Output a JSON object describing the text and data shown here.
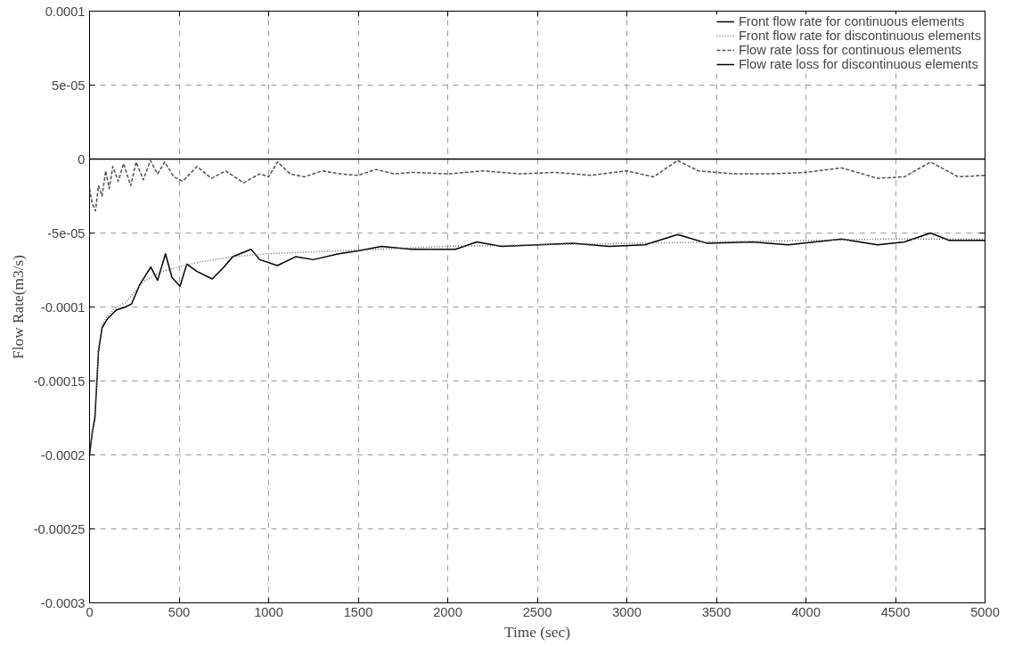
{
  "chart_data": {
    "type": "line",
    "xlabel": "Time (sec)",
    "ylabel": "Flow Rate(m3/s)",
    "xlim": [
      0,
      5000
    ],
    "xticks": [
      0,
      500,
      1000,
      1500,
      2000,
      2500,
      3000,
      3500,
      4000,
      4500,
      5000
    ],
    "ylim": [
      -0.0003,
      0.0001
    ],
    "yticks": [
      {
        "value": -0.0003,
        "label": "-0.0003"
      },
      {
        "value": -0.00025,
        "label": "-0.00025"
      },
      {
        "value": -0.0002,
        "label": "-0.0002"
      },
      {
        "value": -0.00015,
        "label": "-0.00015"
      },
      {
        "value": -0.0001,
        "label": "-0.0001"
      },
      {
        "value": -5e-05,
        "label": "-5e-05"
      },
      {
        "value": 0,
        "label": "0"
      },
      {
        "value": 5e-05,
        "label": "5e-05"
      },
      {
        "value": 0.0001,
        "label": "0.0001"
      }
    ],
    "grid": true,
    "legend": "top right",
    "series": [
      {
        "name": "Front flow rate for continuous elements",
        "color": "#000000",
        "line_style": "solid",
        "x": [
          0,
          15,
          30,
          50,
          70,
          100,
          150,
          200,
          234,
          280,
          342,
          380,
          424,
          460,
          505,
          543,
          600,
          685,
          750,
          800,
          902,
          950,
          1049,
          1150,
          1250,
          1391,
          1500,
          1630,
          1800,
          2043,
          2163,
          2300,
          2500,
          2700,
          2900,
          3100,
          3283,
          3450,
          3700,
          3900,
          4050,
          4200,
          4400,
          4550,
          4696,
          4800,
          5000
        ],
        "values": [
          -0.0002,
          -0.000185,
          -0.000175,
          -0.00013,
          -0.000114,
          -0.000108,
          -0.000102,
          -0.0001,
          -9.8e-05,
          -8.5e-05,
          -7.3e-05,
          -8.2e-05,
          -6.4e-05,
          -8e-05,
          -8.6e-05,
          -7.1e-05,
          -7.6e-05,
          -8.1e-05,
          -7.3e-05,
          -6.6e-05,
          -6.1e-05,
          -6.8e-05,
          -7.2e-05,
          -6.6e-05,
          -6.8e-05,
          -6.4e-05,
          -6.2e-05,
          -5.9e-05,
          -6.1e-05,
          -6.1e-05,
          -5.6e-05,
          -5.9e-05,
          -5.8e-05,
          -5.7e-05,
          -5.9e-05,
          -5.8e-05,
          -5.1e-05,
          -5.7e-05,
          -5.6e-05,
          -5.8e-05,
          -5.6e-05,
          -5.4e-05,
          -5.8e-05,
          -5.6e-05,
          -5e-05,
          -5.5e-05,
          -5.5e-05
        ]
      },
      {
        "name": "Front flow rate for discontinuous elements",
        "color": "#707070",
        "line_style": "dotted",
        "x": [
          0,
          15,
          30,
          50,
          70,
          100,
          150,
          200,
          250,
          300,
          400,
          500,
          600,
          700,
          800,
          1000,
          1200,
          1400,
          1600,
          1800,
          2000,
          2500,
          3000,
          3500,
          4000,
          4500,
          5000
        ],
        "values": [
          -0.0002,
          -0.000185,
          -0.000172,
          -0.000128,
          -0.000112,
          -0.000106,
          -0.0001,
          -9.7e-05,
          -9e-05,
          -8.3e-05,
          -7.6e-05,
          -7.3e-05,
          -7e-05,
          -6.8e-05,
          -6.6e-05,
          -6.4e-05,
          -6.3e-05,
          -6.2e-05,
          -6.1e-05,
          -6e-05,
          -5.9e-05,
          -5.8e-05,
          -5.7e-05,
          -5.6e-05,
          -5.5e-05,
          -5.4e-05,
          -5.4e-05
        ]
      },
      {
        "name": "Flow rate loss for continuous elements",
        "color": "#505050",
        "line_style": "dashed",
        "x": [
          0,
          15,
          33,
          50,
          70,
          90,
          110,
          130,
          160,
          190,
          230,
          260,
          300,
          340,
          380,
          420,
          470,
          520,
          600,
          680,
          760,
          860,
          950,
          1000,
          1050,
          1120,
          1200,
          1300,
          1400,
          1500,
          1600,
          1700,
          1800,
          2000,
          2200,
          2400,
          2600,
          2800,
          3000,
          3150,
          3283,
          3400,
          3600,
          3800,
          4000,
          4200,
          4400,
          4550,
          4696,
          4850,
          5000
        ],
        "values": [
          -2e-05,
          -3e-05,
          -3.5e-05,
          -1.8e-05,
          -2.5e-05,
          -8e-06,
          -2e-05,
          -5e-06,
          -1.5e-05,
          -3e-06,
          -1.8e-05,
          -2e-06,
          -1.4e-05,
          -1e-06,
          -1e-05,
          -2e-06,
          -1.2e-05,
          -1.5e-05,
          -5e-06,
          -1.3e-05,
          -8e-06,
          -1.6e-05,
          -1e-05,
          -1.2e-05,
          -2e-06,
          -1e-05,
          -1.2e-05,
          -8e-06,
          -1e-05,
          -1.1e-05,
          -7e-06,
          -1e-05,
          -9e-06,
          -1e-05,
          -8e-06,
          -1e-05,
          -9e-06,
          -1.1e-05,
          -8e-06,
          -1.2e-05,
          -1e-06,
          -8e-06,
          -1e-05,
          -1e-05,
          -9e-06,
          -6e-06,
          -1.3e-05,
          -1.2e-05,
          -2e-06,
          -1.2e-05,
          -1.1e-05
        ]
      },
      {
        "name": "Flow rate loss for discontinuous elements",
        "color": "#000000",
        "line_style": "solid",
        "x": [
          0,
          5000
        ],
        "values": [
          0,
          0
        ]
      }
    ]
  }
}
